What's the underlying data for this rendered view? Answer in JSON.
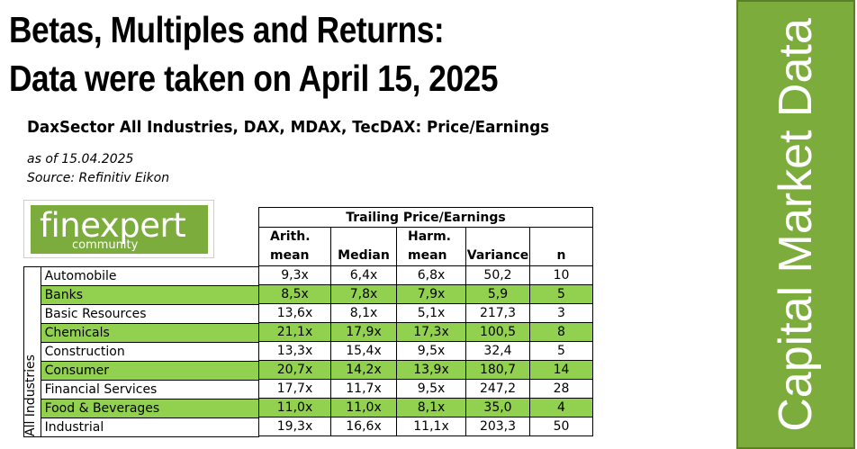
{
  "headline": {
    "line1": "Betas, Multiples and Returns:",
    "line2": "Data were taken on April 15, 2025"
  },
  "sidebar": {
    "label": "Capital Market Data",
    "color": "#7bac3c"
  },
  "document": {
    "title": "DaxSector All Industries, DAX, MDAX, TecDAX: Price/Earnings",
    "as_of": "as of 15.04.2025",
    "source": "Source: Refinitiv Eikon"
  },
  "logo": {
    "main": "finexpert",
    "sub": "community",
    "color": "#7bac3c"
  },
  "table": {
    "group_header": "Trailing Price/Earnings",
    "row_group_label": "All Industries",
    "columns": [
      {
        "line1": "Arith.",
        "line2": "mean"
      },
      {
        "line1": "",
        "line2": "Median"
      },
      {
        "line1": "Harm.",
        "line2": "mean"
      },
      {
        "line1": "",
        "line2": "Variance"
      },
      {
        "line1": "",
        "line2": "n"
      }
    ],
    "shade_color": "#92d050",
    "rows": [
      {
        "label": "Automobile",
        "values": [
          "9,3x",
          "6,4x",
          "6,8x",
          "50,2",
          "10"
        ],
        "shaded": false
      },
      {
        "label": "Banks",
        "values": [
          "8,5x",
          "7,8x",
          "7,9x",
          "5,9",
          "5"
        ],
        "shaded": true
      },
      {
        "label": "Basic Resources",
        "values": [
          "13,6x",
          "8,1x",
          "5,1x",
          "217,3",
          "3"
        ],
        "shaded": false
      },
      {
        "label": "Chemicals",
        "values": [
          "21,1x",
          "17,9x",
          "17,3x",
          "100,5",
          "8"
        ],
        "shaded": true
      },
      {
        "label": "Construction",
        "values": [
          "13,3x",
          "15,4x",
          "9,5x",
          "32,4",
          "5"
        ],
        "shaded": false
      },
      {
        "label": "Consumer",
        "values": [
          "20,7x",
          "14,2x",
          "13,9x",
          "180,7",
          "14"
        ],
        "shaded": true
      },
      {
        "label": "Financial Services",
        "values": [
          "17,7x",
          "11,7x",
          "9,5x",
          "247,2",
          "28"
        ],
        "shaded": false
      },
      {
        "label": "Food & Beverages",
        "values": [
          "11,0x",
          "11,0x",
          "8,1x",
          "35,0",
          "4"
        ],
        "shaded": true
      },
      {
        "label": "Industrial",
        "values": [
          "19,3x",
          "16,6x",
          "11,1x",
          "203,3",
          "50"
        ],
        "shaded": false
      }
    ]
  }
}
